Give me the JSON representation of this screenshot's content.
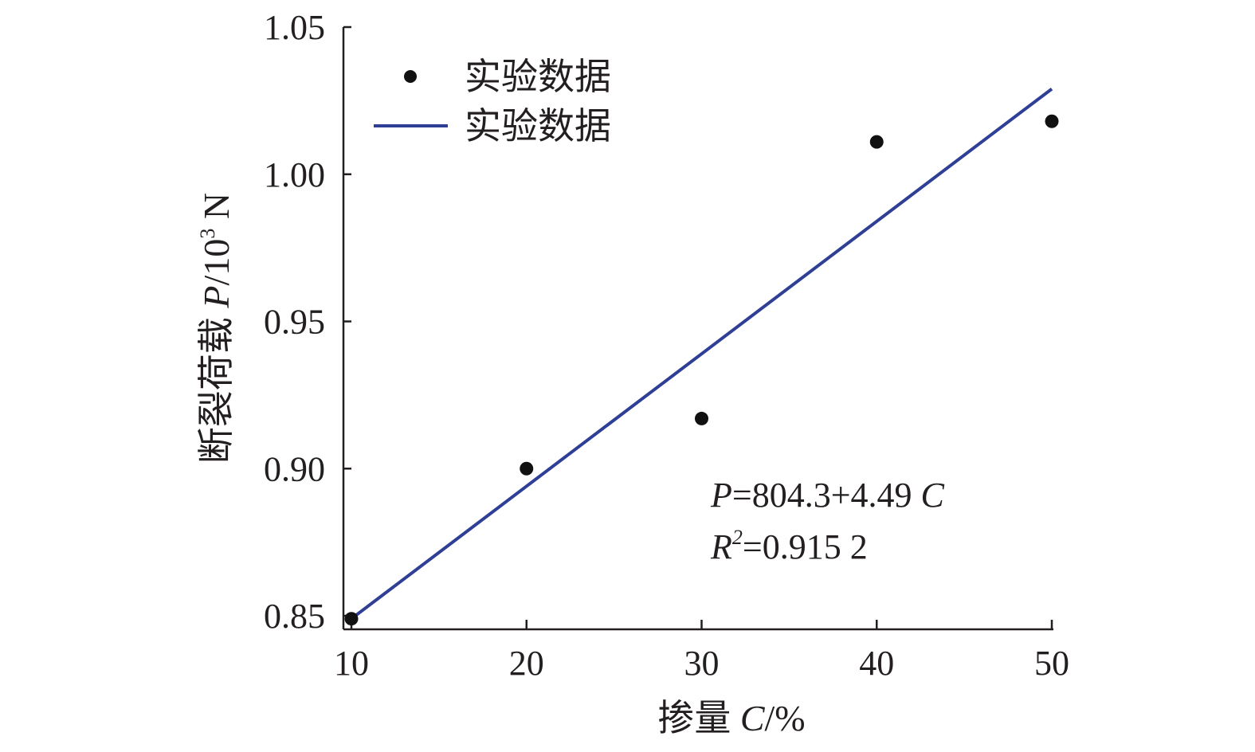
{
  "chart_data": {
    "type": "scatter",
    "xlabel": {
      "prefix": "掺量 ",
      "var": "C",
      "suffix": "/%"
    },
    "ylabel": {
      "prefix": "断裂荷载 ",
      "var": "P",
      "mid": "/10",
      "sup": "3",
      "suffix": " N"
    },
    "xlim": [
      10,
      50
    ],
    "ylim": [
      0.85,
      1.05
    ],
    "xticks": [
      10,
      20,
      30,
      40,
      50
    ],
    "xtick_labels": [
      "10",
      "20",
      "30",
      "40",
      "50"
    ],
    "yticks": [
      0.85,
      0.9,
      0.95,
      1.0,
      1.05
    ],
    "ytick_labels": [
      "0.85",
      "0.90",
      "0.95",
      "1.00",
      "1.05"
    ],
    "grid": false,
    "legend_position": "top-left",
    "series": [
      {
        "name": "实验数据",
        "kind": "scatter",
        "color": "#111111",
        "x": [
          10,
          20,
          30,
          40,
          50
        ],
        "y": [
          0.849,
          0.9,
          0.917,
          1.011,
          1.018
        ]
      },
      {
        "name": "实验数据",
        "kind": "line",
        "color": "#2e3f95",
        "x": [
          10,
          50
        ],
        "y": [
          0.849,
          1.029
        ]
      }
    ],
    "annotations": {
      "equation": {
        "lhs": "P",
        "rhs": "=804.3+4.49 ",
        "var": "C"
      },
      "r2": {
        "lhs": "R",
        "sup": "2",
        "rhs": "=0.915 2"
      }
    }
  }
}
